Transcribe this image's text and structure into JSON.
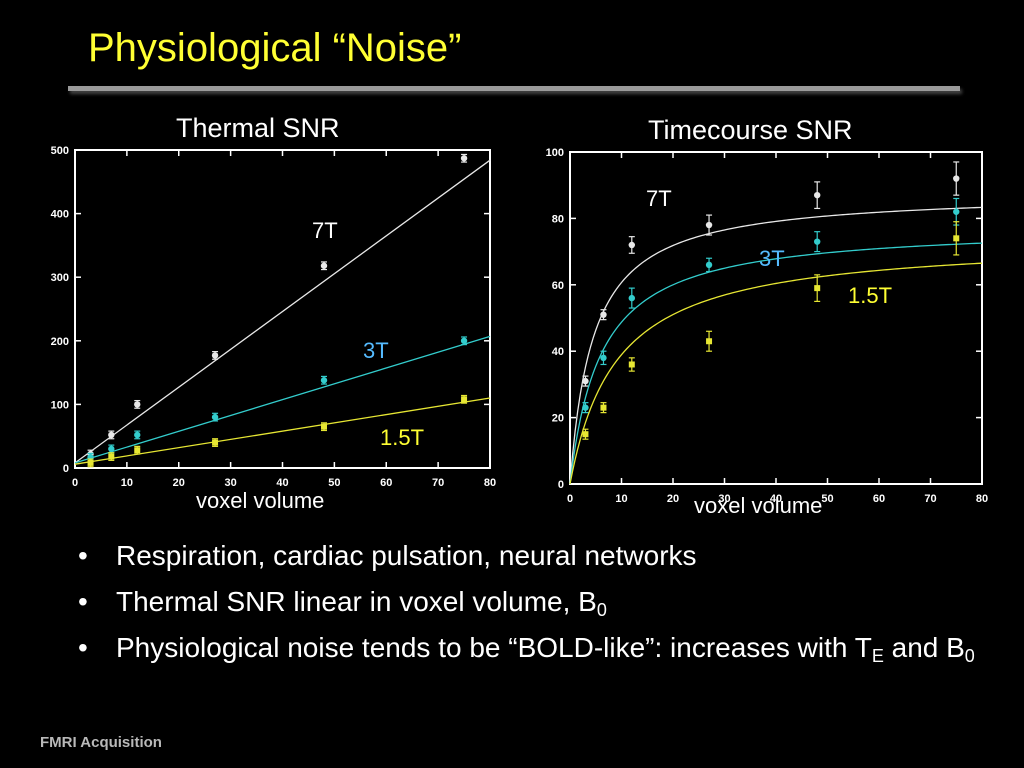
{
  "slide": {
    "title": "Physiological “Noise”",
    "footer": "FMRI Acquisition",
    "panel_titles": [
      "Thermal SNR",
      "Timecourse SNR"
    ],
    "bullets": [
      {
        "text": "Respiration, cardiac pulsation, neural networks"
      },
      {
        "text": "Thermal SNR linear in voxel volume, B",
        "sub": "0"
      },
      {
        "text": "Physiological noise tends to be “BOLD-like”: increases with T",
        "sub": "E",
        "tail": " and B",
        "sub2": "0"
      }
    ],
    "bullet_glyph": "•"
  },
  "chart_data": [
    {
      "type": "scatter",
      "title": "Thermal SNR",
      "xlabel": "voxel volume",
      "ylabel": "",
      "xlim": [
        0,
        80
      ],
      "ylim": [
        0,
        500
      ],
      "xticks": [
        0,
        10,
        20,
        30,
        40,
        50,
        60,
        70,
        80
      ],
      "yticks": [
        0,
        100,
        200,
        300,
        400,
        500
      ],
      "grid": false,
      "fit": "linear",
      "series": [
        {
          "name": "7T",
          "color": "#e8e8e8",
          "x": [
            3,
            7,
            12,
            27,
            48,
            75
          ],
          "y": [
            22,
            52,
            100,
            177,
            318,
            487
          ],
          "fit_y": [
            8,
            484
          ]
        },
        {
          "name": "3T",
          "color": "#33cccc",
          "x": [
            3,
            7,
            12,
            27,
            48,
            75
          ],
          "y": [
            17,
            30,
            52,
            80,
            138,
            200
          ],
          "fit_y": [
            8,
            207
          ]
        },
        {
          "name": "1.5T",
          "color": "#e6e633",
          "x": [
            3,
            7,
            12,
            27,
            48,
            75
          ],
          "y": [
            8,
            18,
            28,
            40,
            65,
            108
          ],
          "fit_y": [
            6,
            110
          ]
        }
      ]
    },
    {
      "type": "scatter",
      "title": "Timecourse SNR",
      "xlabel": "voxel volume",
      "ylabel": "",
      "xlim": [
        0,
        80
      ],
      "ylim": [
        0,
        100
      ],
      "xticks": [
        0,
        10,
        20,
        30,
        40,
        50,
        60,
        70,
        80
      ],
      "yticks": [
        0,
        20,
        40,
        60,
        80,
        100
      ],
      "grid": false,
      "fit": "saturating",
      "series": [
        {
          "name": "7T",
          "color": "#e8e8e8",
          "x": [
            3,
            6.5,
            12,
            27,
            48,
            75
          ],
          "y": [
            31,
            51,
            72,
            78,
            87,
            92
          ],
          "err": [
            1.5,
            1.5,
            2.5,
            3,
            4,
            5
          ],
          "fit_max": 88,
          "fit_k": 4.5
        },
        {
          "name": "3T",
          "color": "#33cccc",
          "x": [
            3,
            6.5,
            12,
            27,
            48,
            75
          ],
          "y": [
            23,
            38,
            56,
            66,
            73,
            82
          ],
          "err": [
            1.5,
            2,
            3,
            2,
            3,
            4
          ],
          "fit_max": 78,
          "fit_k": 6
        },
        {
          "name": "1.5T",
          "color": "#e6e633",
          "x": [
            3,
            6.5,
            12,
            27,
            48,
            75
          ],
          "y": [
            15,
            23,
            36,
            43,
            59,
            74
          ],
          "err": [
            1.5,
            1.5,
            2,
            3,
            4,
            5
          ],
          "fit_max": 74,
          "fit_k": 9
        }
      ]
    }
  ]
}
